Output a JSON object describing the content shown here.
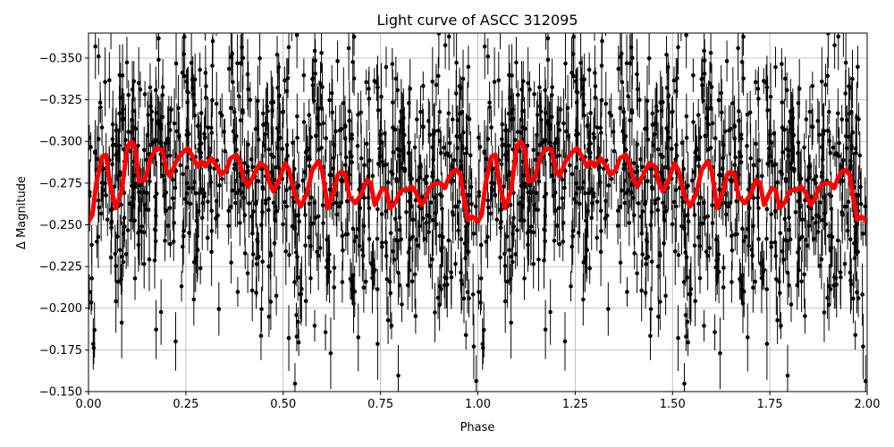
{
  "chart_data": {
    "type": "scatter",
    "title": "Light curve of ASCC 312095",
    "xlabel": "Phase",
    "ylabel": "Δ Magnitude",
    "xlim": [
      0.0,
      2.0
    ],
    "ylim": [
      -0.15,
      -0.365
    ],
    "y_inverted": true,
    "grid": true,
    "x_ticks": [
      0.0,
      0.25,
      0.5,
      0.75,
      1.0,
      1.25,
      1.5,
      1.75,
      2.0
    ],
    "x_tick_labels": [
      "0.00",
      "0.25",
      "0.50",
      "0.75",
      "1.00",
      "1.25",
      "1.50",
      "1.75",
      "2.00"
    ],
    "y_ticks": [
      -0.35,
      -0.325,
      -0.3,
      -0.275,
      -0.25,
      -0.225,
      -0.2,
      -0.175,
      -0.15
    ],
    "y_tick_labels": [
      "−0.350",
      "−0.325",
      "−0.300",
      "−0.275",
      "−0.250",
      "−0.225",
      "−0.200",
      "−0.175",
      "−0.150"
    ],
    "series": [
      {
        "kind": "errorbar-points",
        "color": "#000000",
        "description_of_distribution": {
          "x_range": [
            0.0,
            2.0
          ],
          "y_center": -0.27,
          "y_spread": 0.045,
          "typical_error": 0.012,
          "count_per_phase_cycle": 900
        }
      },
      {
        "kind": "model-line",
        "color": "#ff0000",
        "x": [
          0.0,
          0.01,
          0.02,
          0.035,
          0.045,
          0.055,
          0.07,
          0.085,
          0.1,
          0.11,
          0.12,
          0.13,
          0.145,
          0.16,
          0.175,
          0.19,
          0.2,
          0.21,
          0.225,
          0.24,
          0.255,
          0.265,
          0.28,
          0.29,
          0.3,
          0.315,
          0.33,
          0.34,
          0.355,
          0.365,
          0.38,
          0.39,
          0.4,
          0.41,
          0.425,
          0.44,
          0.455,
          0.465,
          0.475,
          0.49,
          0.505,
          0.515,
          0.53,
          0.545,
          0.56,
          0.575,
          0.59,
          0.6,
          0.615,
          0.63,
          0.64,
          0.65,
          0.66,
          0.67,
          0.685,
          0.7,
          0.715,
          0.725,
          0.735,
          0.745,
          0.755,
          0.765,
          0.775,
          0.79,
          0.8,
          0.81,
          0.82,
          0.83,
          0.84,
          0.855,
          0.865,
          0.875,
          0.885,
          0.895,
          0.905,
          0.915,
          0.925,
          0.935,
          0.945,
          0.955,
          0.965,
          0.975,
          0.985,
          1.0
        ],
        "y": [
          -0.252,
          -0.256,
          -0.275,
          -0.291,
          -0.292,
          -0.275,
          -0.26,
          -0.27,
          -0.297,
          -0.3,
          -0.296,
          -0.276,
          -0.277,
          -0.29,
          -0.296,
          -0.295,
          -0.283,
          -0.279,
          -0.288,
          -0.293,
          -0.296,
          -0.292,
          -0.285,
          -0.288,
          -0.285,
          -0.29,
          -0.285,
          -0.28,
          -0.283,
          -0.29,
          -0.292,
          -0.286,
          -0.277,
          -0.273,
          -0.28,
          -0.287,
          -0.285,
          -0.275,
          -0.27,
          -0.277,
          -0.287,
          -0.283,
          -0.268,
          -0.261,
          -0.268,
          -0.283,
          -0.288,
          -0.283,
          -0.26,
          -0.27,
          -0.28,
          -0.282,
          -0.28,
          -0.267,
          -0.263,
          -0.268,
          -0.277,
          -0.275,
          -0.262,
          -0.267,
          -0.272,
          -0.271,
          -0.26,
          -0.264,
          -0.27,
          -0.271,
          -0.271,
          -0.273,
          -0.27,
          -0.262,
          -0.265,
          -0.272,
          -0.274,
          -0.275,
          -0.275,
          -0.272,
          -0.278,
          -0.282,
          -0.283,
          -0.28,
          -0.265,
          -0.253,
          -0.255,
          -0.252
        ]
      }
    ]
  }
}
